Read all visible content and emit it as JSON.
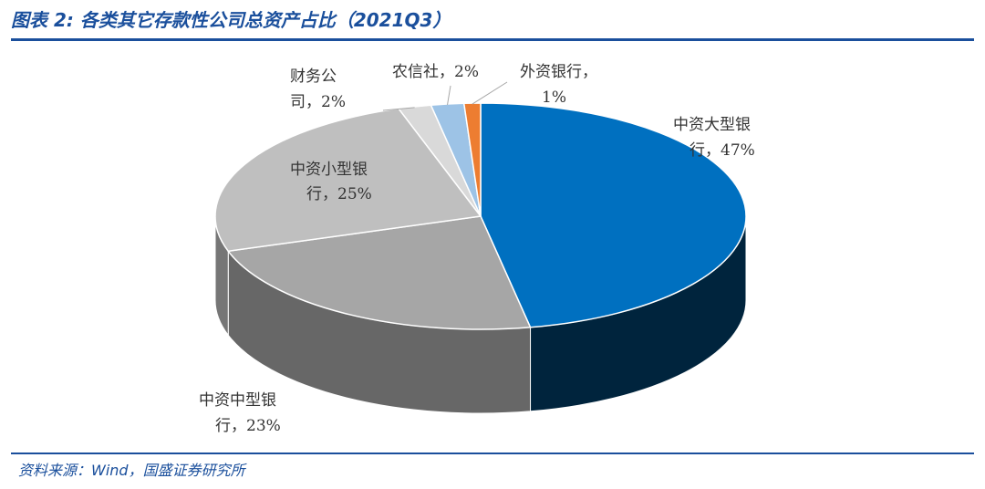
{
  "title": "图表 2: 各类其它存款性公司总资产占比（2021Q3）",
  "source": "资料来源：Wind，国盛证券研究所",
  "chart_data": {
    "type": "pie",
    "style": "3d",
    "slices": [
      {
        "label_line1": "中资大型银",
        "label_line2": "行，47%",
        "name": "中资大型银行",
        "value": 47,
        "color": "#0070c0"
      },
      {
        "label_line1": "中资中型银",
        "label_line2": "行，23%",
        "name": "中资中型银行",
        "value": 23,
        "color": "#a6a6a6"
      },
      {
        "label_line1": "中资小型银",
        "label_line2": "行，25%",
        "name": "中资小型银行",
        "value": 25,
        "color": "#bfbfbf"
      },
      {
        "label_line1": "财务公",
        "label_line2": "司，2%",
        "name": "财务公司",
        "value": 2,
        "color": "#d9d9d9"
      },
      {
        "label_line1": "农信社，2%",
        "label_line2": "",
        "name": "农信社",
        "value": 2,
        "color": "#9dc3e6"
      },
      {
        "label_line1": "外资银行，",
        "label_line2": "1%",
        "name": "外资银行",
        "value": 1,
        "color": "#ed7d31"
      }
    ]
  }
}
